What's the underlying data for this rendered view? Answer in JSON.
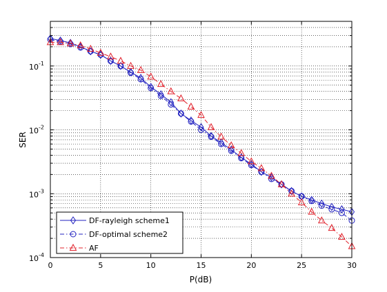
{
  "chart_data": {
    "type": "line",
    "xlabel": "P(dB)",
    "ylabel": "SER",
    "xlim": [
      0,
      30
    ],
    "ylim": [
      0.0001,
      0.5
    ],
    "yscale": "log",
    "grid": true,
    "legend_position": "bottom-left",
    "x_ticks": [
      0,
      5,
      10,
      15,
      20,
      25,
      30
    ],
    "x_tick_labels": [
      "0",
      "5",
      "10",
      "15",
      "20",
      "25",
      "30"
    ],
    "y_ticks": [
      0.0001,
      0.001,
      0.01,
      0.1
    ],
    "y_tick_labels": [
      {
        "base": "10",
        "exp": "-4"
      },
      {
        "base": "10",
        "exp": "-3"
      },
      {
        "base": "10",
        "exp": "-2"
      },
      {
        "base": "10",
        "exp": "-1"
      }
    ],
    "x": [
      0,
      1,
      2,
      3,
      4,
      5,
      6,
      7,
      8,
      9,
      10,
      11,
      12,
      13,
      14,
      15,
      16,
      17,
      18,
      19,
      20,
      21,
      22,
      23,
      24,
      25,
      26,
      27,
      28,
      29,
      30
    ],
    "series": [
      {
        "name": "DF-rayleigh scheme1",
        "color": "#1f1fbf",
        "marker": "diamond",
        "linestyle": "solid",
        "values": [
          0.27,
          0.25,
          0.23,
          0.2,
          0.17,
          0.15,
          0.12,
          0.1,
          0.08,
          0.065,
          0.047,
          0.036,
          0.027,
          0.018,
          0.014,
          0.011,
          0.008,
          0.0063,
          0.0049,
          0.0037,
          0.0029,
          0.0022,
          0.0018,
          0.0014,
          0.0011,
          0.00091,
          0.0008,
          0.0007,
          0.00062,
          0.00057,
          0.00052
        ]
      },
      {
        "name": "DF-optimal scheme2",
        "color": "#1f1fbf",
        "marker": "circle",
        "linestyle": "dashdot",
        "values": [
          0.26,
          0.24,
          0.22,
          0.195,
          0.17,
          0.15,
          0.12,
          0.1,
          0.078,
          0.062,
          0.045,
          0.034,
          0.025,
          0.018,
          0.0135,
          0.01,
          0.0078,
          0.006,
          0.0047,
          0.0036,
          0.0028,
          0.0022,
          0.0017,
          0.0014,
          0.0011,
          0.00091,
          0.00077,
          0.00065,
          0.00057,
          0.0005,
          0.00038
        ]
      },
      {
        "name": "AF",
        "color": "#e0202a",
        "marker": "triangle",
        "linestyle": "dashdot",
        "values": [
          0.235,
          0.235,
          0.225,
          0.21,
          0.185,
          0.16,
          0.14,
          0.12,
          0.1,
          0.086,
          0.068,
          0.052,
          0.04,
          0.031,
          0.023,
          0.017,
          0.011,
          0.0078,
          0.0057,
          0.0043,
          0.0032,
          0.0025,
          0.0019,
          0.0014,
          0.001,
          0.00073,
          0.00052,
          0.00038,
          0.00029,
          0.00021,
          0.00015
        ]
      }
    ]
  }
}
